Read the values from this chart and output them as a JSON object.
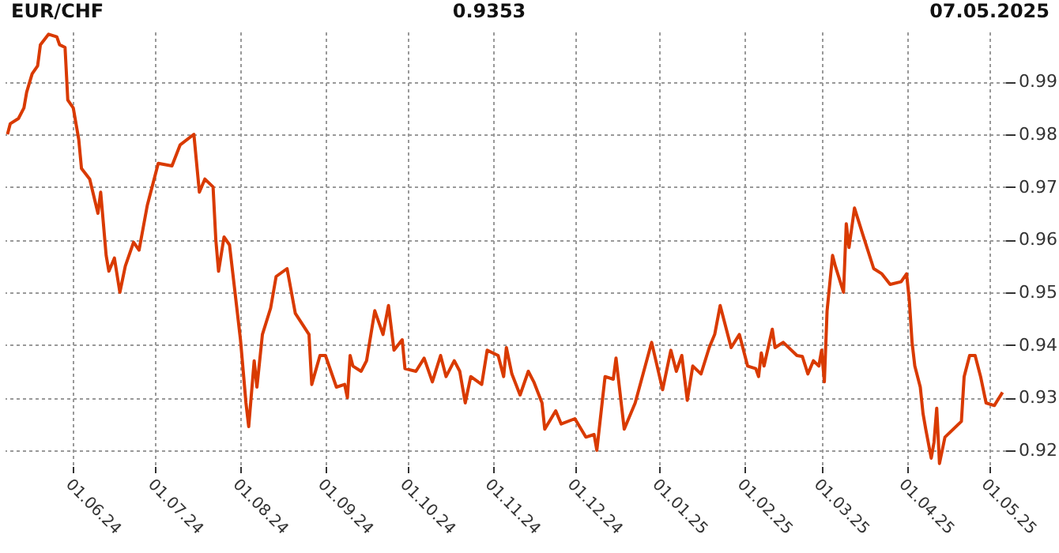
{
  "chart_data": {
    "type": "line",
    "title": "EUR/CHF",
    "annotations": [
      "0.9353",
      "07.05.2025"
    ],
    "x": [
      "2024-05-08",
      "2024-05-09",
      "2024-05-12",
      "2024-05-14",
      "2024-05-15",
      "2024-05-17",
      "2024-05-19",
      "2024-05-20",
      "2024-05-23",
      "2024-05-26",
      "2024-05-27",
      "2024-05-29",
      "2024-05-30",
      "2024-06-01",
      "2024-06-03",
      "2024-06-04",
      "2024-06-07",
      "2024-06-10",
      "2024-06-11",
      "2024-06-13",
      "2024-06-14",
      "2024-06-16",
      "2024-06-18",
      "2024-06-20",
      "2024-06-23",
      "2024-06-25",
      "2024-06-28",
      "2024-07-02",
      "2024-07-07",
      "2024-07-10",
      "2024-07-15",
      "2024-07-17",
      "2024-07-19",
      "2024-07-22",
      "2024-07-23",
      "2024-07-24",
      "2024-07-26",
      "2024-07-28",
      "2024-07-30",
      "2024-08-01",
      "2024-08-03",
      "2024-08-04",
      "2024-08-06",
      "2024-08-07",
      "2024-08-09",
      "2024-08-12",
      "2024-08-14",
      "2024-08-18",
      "2024-08-21",
      "2024-08-26",
      "2024-08-27",
      "2024-08-30",
      "2024-09-01",
      "2024-09-05",
      "2024-09-08",
      "2024-09-09",
      "2024-09-10",
      "2024-09-11",
      "2024-09-14",
      "2024-09-16",
      "2024-09-19",
      "2024-09-22",
      "2024-09-24",
      "2024-09-26",
      "2024-09-29",
      "2024-09-30",
      "2024-10-04",
      "2024-10-07",
      "2024-10-10",
      "2024-10-13",
      "2024-10-15",
      "2024-10-18",
      "2024-10-20",
      "2024-10-22",
      "2024-10-24",
      "2024-10-28",
      "2024-10-30",
      "2024-11-03",
      "2024-11-05",
      "2024-11-06",
      "2024-11-08",
      "2024-11-11",
      "2024-11-14",
      "2024-11-16",
      "2024-11-19",
      "2024-11-20",
      "2024-11-24",
      "2024-11-26",
      "2024-12-01",
      "2024-12-05",
      "2024-12-08",
      "2024-12-09",
      "2024-12-12",
      "2024-12-15",
      "2024-12-16",
      "2024-12-19",
      "2024-12-23",
      "2024-12-29",
      "2025-01-02",
      "2025-01-05",
      "2025-01-07",
      "2025-01-09",
      "2025-01-11",
      "2025-01-13",
      "2025-01-16",
      "2025-01-19",
      "2025-01-21",
      "2025-01-23",
      "2025-01-27",
      "2025-01-30",
      "2025-02-02",
      "2025-02-05",
      "2025-02-06",
      "2025-02-07",
      "2025-02-08",
      "2025-02-11",
      "2025-02-12",
      "2025-02-15",
      "2025-02-20",
      "2025-02-22",
      "2025-02-24",
      "2025-02-26",
      "2025-02-28",
      "2025-03-01",
      "2025-03-02",
      "2025-03-03",
      "2025-03-05",
      "2025-03-06",
      "2025-03-09",
      "2025-03-10",
      "2025-03-11",
      "2025-03-13",
      "2025-03-16",
      "2025-03-20",
      "2025-03-23",
      "2025-03-26",
      "2025-03-30",
      "2025-04-01",
      "2025-04-02",
      "2025-04-03",
      "2025-04-04",
      "2025-04-06",
      "2025-04-07",
      "2025-04-08",
      "2025-04-10",
      "2025-04-11",
      "2025-04-12",
      "2025-04-13",
      "2025-04-15",
      "2025-04-21",
      "2025-04-22",
      "2025-04-24",
      "2025-04-26",
      "2025-04-28",
      "2025-04-30",
      "2025-05-03",
      "2025-05-06"
    ],
    "series": [
      {
        "color": "#d93a00",
        "values": [
          0.98,
          0.982,
          0.983,
          0.985,
          0.988,
          0.9915,
          0.993,
          0.997,
          0.999,
          0.9985,
          0.997,
          0.9965,
          0.9865,
          0.985,
          0.979,
          0.9735,
          0.9715,
          0.965,
          0.969,
          0.957,
          0.954,
          0.9565,
          0.95,
          0.955,
          0.9595,
          0.958,
          0.9665,
          0.9745,
          0.974,
          0.978,
          0.98,
          0.969,
          0.9715,
          0.97,
          0.96,
          0.954,
          0.9605,
          0.959,
          0.95,
          0.941,
          0.929,
          0.9245,
          0.937,
          0.932,
          0.942,
          0.947,
          0.953,
          0.9545,
          0.946,
          0.942,
          0.9325,
          0.938,
          0.938,
          0.932,
          0.9325,
          0.93,
          0.938,
          0.936,
          0.935,
          0.937,
          0.9465,
          0.942,
          0.9475,
          0.939,
          0.941,
          0.9355,
          0.935,
          0.9375,
          0.933,
          0.938,
          0.934,
          0.937,
          0.935,
          0.929,
          0.934,
          0.9325,
          0.939,
          0.938,
          0.934,
          0.9395,
          0.9345,
          0.9305,
          0.935,
          0.933,
          0.929,
          0.924,
          0.9275,
          0.925,
          0.926,
          0.9225,
          0.923,
          0.92,
          0.934,
          0.9335,
          0.9375,
          0.924,
          0.929,
          0.9405,
          0.9315,
          0.939,
          0.935,
          0.938,
          0.9295,
          0.936,
          0.9345,
          0.9395,
          0.942,
          0.9475,
          0.9395,
          0.942,
          0.936,
          0.9355,
          0.934,
          0.9385,
          0.936,
          0.943,
          0.9395,
          0.9405,
          0.938,
          0.9378,
          0.9345,
          0.937,
          0.936,
          0.939,
          0.933,
          0.9465,
          0.957,
          0.955,
          0.95,
          0.963,
          0.9585,
          0.966,
          0.961,
          0.9545,
          0.9535,
          0.9515,
          0.952,
          0.9535,
          0.9485,
          0.9405,
          0.936,
          0.932,
          0.927,
          0.924,
          0.9185,
          0.9215,
          0.928,
          0.9175,
          0.9225,
          0.9255,
          0.934,
          0.938,
          0.938,
          0.934,
          0.929,
          0.9285,
          0.931
        ]
      }
    ],
    "xlim": [
      "2024-05-07",
      "2025-05-07"
    ],
    "xticks": [
      {
        "value": "2024-06-01",
        "label": "01.06.24"
      },
      {
        "value": "2024-07-01",
        "label": "01.07.24"
      },
      {
        "value": "2024-08-01",
        "label": "01.08.24"
      },
      {
        "value": "2024-09-01",
        "label": "01.09.24"
      },
      {
        "value": "2024-10-01",
        "label": "01.10.24"
      },
      {
        "value": "2024-11-01",
        "label": "01.11.24"
      },
      {
        "value": "2024-12-01",
        "label": "01.12.24"
      },
      {
        "value": "2025-01-01",
        "label": "01.01.25"
      },
      {
        "value": "2025-02-01",
        "label": "01.02.25"
      },
      {
        "value": "2025-03-01",
        "label": "01.03.25"
      },
      {
        "value": "2025-04-01",
        "label": "01.04.25"
      },
      {
        "value": "2025-05-01",
        "label": "01.05.25"
      }
    ],
    "ylim": [
      0.917,
      0.9995
    ],
    "yticks": [
      {
        "value": 0.92,
        "label": "0.92"
      },
      {
        "value": 0.93,
        "label": "0.93"
      },
      {
        "value": 0.94,
        "label": "0.94"
      },
      {
        "value": 0.95,
        "label": "0.95"
      },
      {
        "value": 0.96,
        "label": "0.96"
      },
      {
        "value": 0.97,
        "label": "0.97"
      },
      {
        "value": 0.98,
        "label": "0.98"
      },
      {
        "value": 0.99,
        "label": "0.99"
      }
    ],
    "grid": true,
    "marker": "none",
    "line_style": "solid"
  }
}
